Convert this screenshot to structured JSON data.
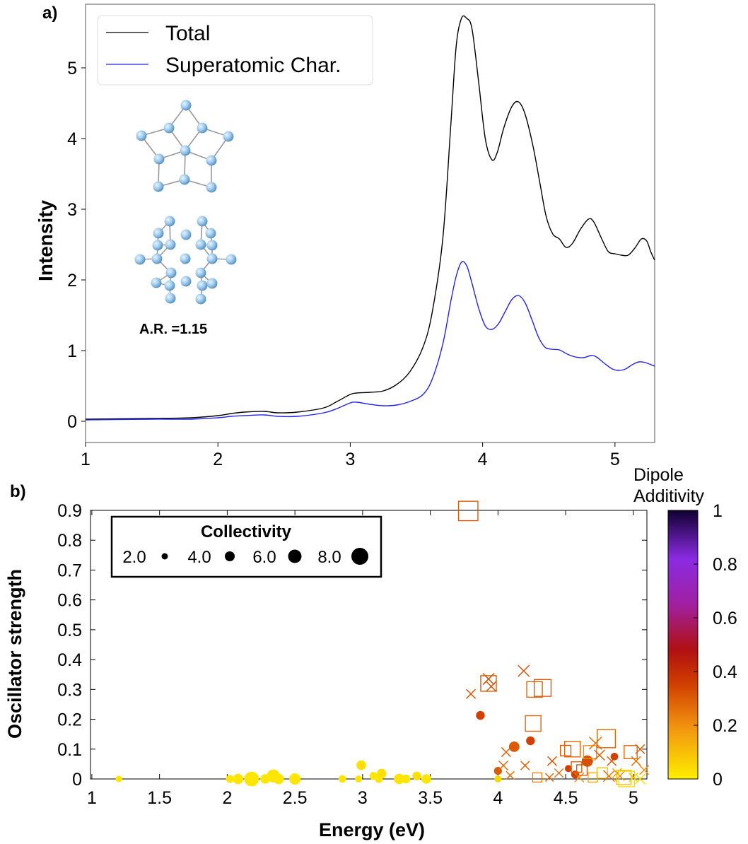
{
  "panel_labels": [
    "a)",
    "b)"
  ],
  "inset_caption": "A.R. =1.15",
  "chart_data": [
    {
      "type": "line",
      "ylabel": "Intensity",
      "xlim": [
        1,
        5.3
      ],
      "ylim": [
        -0.3,
        5.9
      ],
      "xticks": [
        "1",
        "2",
        "3",
        "4",
        "5"
      ],
      "yticks": [
        "0",
        "1",
        "2",
        "3",
        "4",
        "5"
      ],
      "legend_position": "top-left",
      "series": [
        {
          "name": "Total",
          "color": "#000000",
          "points": [
            [
              1.0,
              0.03
            ],
            [
              1.5,
              0.04
            ],
            [
              1.8,
              0.05
            ],
            [
              2.0,
              0.08
            ],
            [
              2.1,
              0.11
            ],
            [
              2.2,
              0.13
            ],
            [
              2.35,
              0.14
            ],
            [
              2.45,
              0.12
            ],
            [
              2.6,
              0.13
            ],
            [
              2.8,
              0.19
            ],
            [
              2.9,
              0.28
            ],
            [
              3.0,
              0.38
            ],
            [
              3.05,
              0.4
            ],
            [
              3.15,
              0.41
            ],
            [
              3.25,
              0.43
            ],
            [
              3.35,
              0.52
            ],
            [
              3.45,
              0.7
            ],
            [
              3.55,
              1.05
            ],
            [
              3.62,
              1.55
            ],
            [
              3.7,
              2.6
            ],
            [
              3.76,
              4.2
            ],
            [
              3.8,
              5.3
            ],
            [
              3.84,
              5.7
            ],
            [
              3.88,
              5.7
            ],
            [
              3.92,
              5.55
            ],
            [
              3.97,
              4.8
            ],
            [
              4.02,
              4.0
            ],
            [
              4.07,
              3.7
            ],
            [
              4.11,
              3.8
            ],
            [
              4.16,
              4.15
            ],
            [
              4.22,
              4.45
            ],
            [
              4.27,
              4.52
            ],
            [
              4.32,
              4.35
            ],
            [
              4.38,
              3.9
            ],
            [
              4.43,
              3.4
            ],
            [
              4.48,
              2.9
            ],
            [
              4.53,
              2.65
            ],
            [
              4.58,
              2.58
            ],
            [
              4.63,
              2.46
            ],
            [
              4.68,
              2.52
            ],
            [
              4.74,
              2.72
            ],
            [
              4.8,
              2.86
            ],
            [
              4.84,
              2.82
            ],
            [
              4.9,
              2.58
            ],
            [
              4.95,
              2.4
            ],
            [
              5.0,
              2.37
            ],
            [
              5.05,
              2.35
            ],
            [
              5.1,
              2.35
            ],
            [
              5.15,
              2.45
            ],
            [
              5.2,
              2.58
            ],
            [
              5.24,
              2.55
            ],
            [
              5.27,
              2.4
            ],
            [
              5.3,
              2.28
            ]
          ]
        },
        {
          "name": "Superatomic Char.",
          "color": "#2222ee",
          "points": [
            [
              1.0,
              0.02
            ],
            [
              1.5,
              0.03
            ],
            [
              1.8,
              0.03
            ],
            [
              2.0,
              0.05
            ],
            [
              2.1,
              0.07
            ],
            [
              2.2,
              0.08
            ],
            [
              2.35,
              0.09
            ],
            [
              2.45,
              0.07
            ],
            [
              2.6,
              0.07
            ],
            [
              2.8,
              0.12
            ],
            [
              2.9,
              0.18
            ],
            [
              3.0,
              0.26
            ],
            [
              3.05,
              0.27
            ],
            [
              3.15,
              0.24
            ],
            [
              3.25,
              0.22
            ],
            [
              3.35,
              0.23
            ],
            [
              3.45,
              0.28
            ],
            [
              3.55,
              0.38
            ],
            [
              3.62,
              0.6
            ],
            [
              3.7,
              1.1
            ],
            [
              3.76,
              1.7
            ],
            [
              3.8,
              2.05
            ],
            [
              3.84,
              2.25
            ],
            [
              3.88,
              2.2
            ],
            [
              3.92,
              1.95
            ],
            [
              3.97,
              1.6
            ],
            [
              4.02,
              1.35
            ],
            [
              4.07,
              1.3
            ],
            [
              4.12,
              1.38
            ],
            [
              4.17,
              1.55
            ],
            [
              4.22,
              1.72
            ],
            [
              4.27,
              1.78
            ],
            [
              4.32,
              1.68
            ],
            [
              4.37,
              1.45
            ],
            [
              4.42,
              1.2
            ],
            [
              4.47,
              1.05
            ],
            [
              4.52,
              1.02
            ],
            [
              4.58,
              1.01
            ],
            [
              4.64,
              0.95
            ],
            [
              4.7,
              0.91
            ],
            [
              4.76,
              0.9
            ],
            [
              4.82,
              0.93
            ],
            [
              4.86,
              0.91
            ],
            [
              4.92,
              0.82
            ],
            [
              4.98,
              0.74
            ],
            [
              5.03,
              0.72
            ],
            [
              5.08,
              0.74
            ],
            [
              5.13,
              0.8
            ],
            [
              5.18,
              0.84
            ],
            [
              5.23,
              0.83
            ],
            [
              5.3,
              0.78
            ]
          ]
        }
      ]
    },
    {
      "type": "scatter",
      "xlabel": "Energy (eV)",
      "ylabel": "Oscillator strength",
      "xlim": [
        0.99,
        5.1
      ],
      "ylim": [
        0,
        0.9
      ],
      "xticks": [
        "1",
        "1.5",
        "2",
        "2.5",
        "3",
        "3.5",
        "4",
        "4.5",
        "5"
      ],
      "yticks": [
        "0",
        "0.1",
        "0.2",
        "0.3",
        "0.4",
        "0.5",
        "0.6",
        "0.7",
        "0.8",
        "0.9"
      ],
      "legend": {
        "title": "Collectivity",
        "entries": [
          {
            "label": "2.0",
            "collectivity": 2.0
          },
          {
            "label": "4.0",
            "collectivity": 4.0
          },
          {
            "label": "6.0",
            "collectivity": 6.0
          },
          {
            "label": "8.0",
            "collectivity": 8.0
          }
        ]
      },
      "colorbar": {
        "title": [
          "Dipole",
          "Additivity"
        ],
        "range": [
          0,
          1
        ],
        "ticks": [
          "0",
          "0.2",
          "0.4",
          "0.6",
          "0.8",
          "1"
        ],
        "stops": [
          [
            0,
            "#ffee00"
          ],
          [
            0.2,
            "#f09010"
          ],
          [
            0.35,
            "#d04000"
          ],
          [
            0.48,
            "#b01010"
          ],
          [
            0.65,
            "#a020a0"
          ],
          [
            0.82,
            "#8a2be2"
          ],
          [
            1,
            "#100030"
          ]
        ]
      },
      "points": [
        {
          "x": 1.2,
          "y": 0.0,
          "c": 2.2,
          "d": 0.02,
          "m": "circle"
        },
        {
          "x": 2.02,
          "y": 0.0,
          "c": 3.0,
          "d": 0.02,
          "m": "circle"
        },
        {
          "x": 2.08,
          "y": 0.0,
          "c": 4.5,
          "d": 0.02,
          "m": "circle"
        },
        {
          "x": 2.18,
          "y": 0.0,
          "c": 7.0,
          "d": 0.02,
          "m": "circle"
        },
        {
          "x": 2.28,
          "y": 0.0,
          "c": 4.0,
          "d": 0.02,
          "m": "circle"
        },
        {
          "x": 2.34,
          "y": 0.01,
          "c": 6.0,
          "d": 0.02,
          "m": "circle"
        },
        {
          "x": 2.38,
          "y": 0.0,
          "c": 4.5,
          "d": 0.02,
          "m": "circle"
        },
        {
          "x": 2.5,
          "y": 0.0,
          "c": 5.0,
          "d": 0.02,
          "m": "circle"
        },
        {
          "x": 2.85,
          "y": 0.0,
          "c": 2.8,
          "d": 0.02,
          "m": "circle"
        },
        {
          "x": 2.97,
          "y": 0.0,
          "c": 2.5,
          "d": 0.02,
          "m": "circle"
        },
        {
          "x": 2.99,
          "y": 0.046,
          "c": 4.0,
          "d": 0.03,
          "m": "circle"
        },
        {
          "x": 3.08,
          "y": 0.01,
          "c": 3.0,
          "d": 0.02,
          "m": "circle"
        },
        {
          "x": 3.12,
          "y": 0.0,
          "c": 3.0,
          "d": 0.02,
          "m": "circle"
        },
        {
          "x": 3.14,
          "y": 0.018,
          "c": 4.0,
          "d": 0.03,
          "m": "circle"
        },
        {
          "x": 3.27,
          "y": 0.0,
          "c": 4.5,
          "d": 0.02,
          "m": "circle"
        },
        {
          "x": 3.32,
          "y": 0.0,
          "c": 3.5,
          "d": 0.02,
          "m": "circle"
        },
        {
          "x": 3.4,
          "y": 0.01,
          "c": 3.5,
          "d": 0.03,
          "m": "circle"
        },
        {
          "x": 3.47,
          "y": 0.0,
          "c": 4.0,
          "d": 0.02,
          "m": "circle"
        },
        {
          "x": 3.78,
          "y": 0.898,
          "c": 6.5,
          "d": 0.3,
          "m": "square"
        },
        {
          "x": 3.8,
          "y": 0.285,
          "c": 3.0,
          "d": 0.3,
          "m": "cross"
        },
        {
          "x": 3.87,
          "y": 0.213,
          "c": 3.5,
          "d": 0.35,
          "m": "circle"
        },
        {
          "x": 3.93,
          "y": 0.335,
          "c": 4.0,
          "d": 0.32,
          "m": "cross"
        },
        {
          "x": 3.93,
          "y": 0.32,
          "c": 5.0,
          "d": 0.3,
          "m": "square"
        },
        {
          "x": 3.95,
          "y": 0.31,
          "c": 3.5,
          "d": 0.32,
          "m": "cross"
        },
        {
          "x": 4.0,
          "y": 0.027,
          "c": 3.0,
          "d": 0.3,
          "m": "circle"
        },
        {
          "x": 4.0,
          "y": 0.0,
          "c": 2.5,
          "d": 0.05,
          "m": "circle"
        },
        {
          "x": 4.04,
          "y": 0.045,
          "c": 3.0,
          "d": 0.28,
          "m": "cross"
        },
        {
          "x": 4.06,
          "y": 0.09,
          "c": 3.0,
          "d": 0.3,
          "m": "cross"
        },
        {
          "x": 4.09,
          "y": 0.012,
          "c": 2.5,
          "d": 0.25,
          "m": "cross"
        },
        {
          "x": 4.12,
          "y": 0.108,
          "c": 4.5,
          "d": 0.3,
          "m": "circle"
        },
        {
          "x": 4.19,
          "y": 0.362,
          "c": 4.0,
          "d": 0.32,
          "m": "cross"
        },
        {
          "x": 4.2,
          "y": 0.045,
          "c": 2.8,
          "d": 0.28,
          "m": "cross"
        },
        {
          "x": 4.24,
          "y": 0.128,
          "c": 3.5,
          "d": 0.35,
          "m": "circle"
        },
        {
          "x": 4.26,
          "y": 0.186,
          "c": 5.0,
          "d": 0.28,
          "m": "square"
        },
        {
          "x": 4.27,
          "y": 0.3,
          "c": 5.0,
          "d": 0.28,
          "m": "square"
        },
        {
          "x": 4.29,
          "y": 0.005,
          "c": 2.5,
          "d": 0.22,
          "m": "square"
        },
        {
          "x": 4.33,
          "y": 0.305,
          "c": 5.5,
          "d": 0.3,
          "m": "square"
        },
        {
          "x": 4.38,
          "y": 0.005,
          "c": 2.5,
          "d": 0.28,
          "m": "cross"
        },
        {
          "x": 4.4,
          "y": 0.06,
          "c": 3.0,
          "d": 0.3,
          "m": "cross"
        },
        {
          "x": 4.45,
          "y": 0.02,
          "c": 2.8,
          "d": 0.25,
          "m": "cross"
        },
        {
          "x": 4.5,
          "y": 0.095,
          "c": 3.0,
          "d": 0.3,
          "m": "square"
        },
        {
          "x": 4.52,
          "y": 0.035,
          "c": 2.5,
          "d": 0.35,
          "m": "circle"
        },
        {
          "x": 4.55,
          "y": 0.1,
          "c": 5.0,
          "d": 0.28,
          "m": "square"
        },
        {
          "x": 4.57,
          "y": 0.015,
          "c": 3.0,
          "d": 0.35,
          "m": "circle"
        },
        {
          "x": 4.58,
          "y": 0.04,
          "c": 3.0,
          "d": 0.3,
          "m": "square"
        },
        {
          "x": 4.6,
          "y": 0.005,
          "c": 3.0,
          "d": 0.2,
          "m": "cross"
        },
        {
          "x": 4.62,
          "y": 0.03,
          "c": 3.0,
          "d": 0.3,
          "m": "square"
        },
        {
          "x": 4.66,
          "y": 0.06,
          "c": 5.0,
          "d": 0.32,
          "m": "circle"
        },
        {
          "x": 4.68,
          "y": 0.09,
          "c": 4.0,
          "d": 0.2,
          "m": "square"
        },
        {
          "x": 4.7,
          "y": 0.005,
          "c": 2.5,
          "d": 0.15,
          "m": "square"
        },
        {
          "x": 4.72,
          "y": 0.12,
          "c": 4.5,
          "d": 0.25,
          "m": "cross"
        },
        {
          "x": 4.75,
          "y": 0.08,
          "c": 3.5,
          "d": 0.3,
          "m": "cross"
        },
        {
          "x": 4.77,
          "y": 0.02,
          "c": 3.0,
          "d": 0.1,
          "m": "square"
        },
        {
          "x": 4.8,
          "y": 0.135,
          "c": 6.0,
          "d": 0.28,
          "m": "square"
        },
        {
          "x": 4.82,
          "y": 0.01,
          "c": 4.0,
          "d": 0.25,
          "m": "cross"
        },
        {
          "x": 4.84,
          "y": 0.06,
          "c": 3.0,
          "d": 0.3,
          "m": "cross"
        },
        {
          "x": 4.86,
          "y": 0.075,
          "c": 2.8,
          "d": 0.35,
          "m": "circle"
        },
        {
          "x": 4.88,
          "y": 0.02,
          "c": 3.0,
          "d": 0.15,
          "m": "cross"
        },
        {
          "x": 4.9,
          "y": 0.01,
          "c": 3.0,
          "d": 0.2,
          "m": "cross"
        },
        {
          "x": 4.93,
          "y": 0.005,
          "c": 4.5,
          "d": 0.1,
          "m": "square"
        },
        {
          "x": 4.95,
          "y": 0.0,
          "c": 5.0,
          "d": 0.05,
          "m": "square"
        },
        {
          "x": 4.98,
          "y": 0.09,
          "c": 4.0,
          "d": 0.28,
          "m": "square"
        },
        {
          "x": 5.0,
          "y": 0.005,
          "c": 3.0,
          "d": 0.08,
          "m": "cross"
        },
        {
          "x": 5.02,
          "y": 0.06,
          "c": 3.0,
          "d": 0.25,
          "m": "cross"
        },
        {
          "x": 5.05,
          "y": 0.1,
          "c": 3.0,
          "d": 0.3,
          "m": "cross"
        },
        {
          "x": 5.05,
          "y": 0.0,
          "c": 3.5,
          "d": 0.03,
          "m": "cross"
        },
        {
          "x": 5.08,
          "y": 0.03,
          "c": 3.0,
          "d": 0.2,
          "m": "cross"
        }
      ]
    }
  ]
}
